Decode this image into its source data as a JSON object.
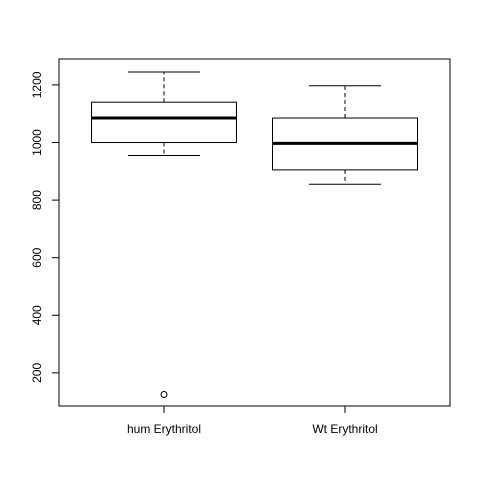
{
  "chart_data": {
    "type": "boxplot",
    "title": "",
    "xlabel": "",
    "ylabel": "",
    "ylim": [
      85,
      1290
    ],
    "yticks": [
      200,
      400,
      600,
      800,
      1000,
      1200
    ],
    "categories": [
      "hum Erythritol",
      "Wt Erythritol"
    ],
    "boxes": [
      {
        "category": "hum Erythritol",
        "whisker_low": 955,
        "q1": 1000,
        "median": 1085,
        "q3": 1140,
        "whisker_high": 1245,
        "outliers": [
          125
        ]
      },
      {
        "category": "Wt Erythritol",
        "whisker_low": 855,
        "q1": 905,
        "median": 997,
        "q3": 1085,
        "whisker_high": 1197,
        "outliers": []
      }
    ],
    "grid": false,
    "legend": "none"
  }
}
